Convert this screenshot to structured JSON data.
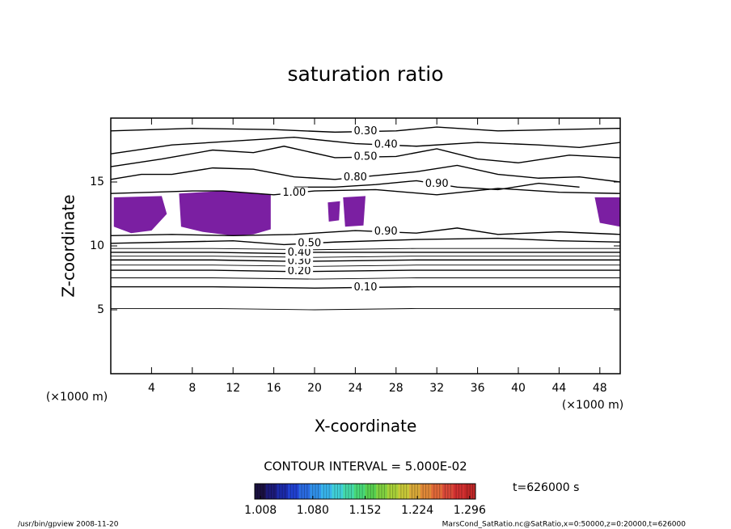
{
  "chart_data": {
    "type": "contour",
    "title": "saturation ratio",
    "x_label": "X-coordinate",
    "y_label": "Z-coordinate",
    "x_unit": "(×1000 m)",
    "y_unit": "(×1000 m)",
    "xlim": [
      0,
      50
    ],
    "ylim": [
      0,
      20
    ],
    "xticks": [
      4,
      8,
      12,
      16,
      20,
      24,
      28,
      32,
      36,
      40,
      44,
      48
    ],
    "yticks": [
      5,
      10,
      15
    ],
    "line_color": "#000000",
    "contours": [
      {
        "level": 0.05,
        "x": [
          0,
          10,
          20,
          30,
          40,
          50
        ],
        "z": [
          5.1,
          5.1,
          5.0,
          5.1,
          5.1,
          5.1
        ]
      },
      {
        "level": 0.1,
        "label": "0.10",
        "x": [
          0,
          10,
          20,
          30,
          40,
          50
        ],
        "z": [
          6.8,
          6.8,
          6.7,
          6.8,
          6.8,
          6.8
        ]
      },
      {
        "level": 0.15,
        "x": [
          0,
          10,
          20,
          30,
          40,
          50
        ],
        "z": [
          7.5,
          7.5,
          7.4,
          7.5,
          7.5,
          7.5
        ]
      },
      {
        "level": 0.2,
        "label": "0.20",
        "x": [
          0,
          10,
          17,
          20,
          30,
          40,
          50
        ],
        "z": [
          8.1,
          8.1,
          8.0,
          8.0,
          8.1,
          8.1,
          8.1
        ]
      },
      {
        "level": 0.25,
        "x": [
          0,
          10,
          20,
          30,
          40,
          50
        ],
        "z": [
          8.5,
          8.5,
          8.4,
          8.5,
          8.5,
          8.5
        ]
      },
      {
        "level": 0.3,
        "label": "0.30",
        "x": [
          0,
          10,
          17,
          20,
          30,
          40,
          50
        ],
        "z": [
          8.9,
          8.9,
          8.8,
          8.8,
          8.9,
          8.9,
          8.9
        ]
      },
      {
        "level": 0.35,
        "x": [
          0,
          10,
          20,
          30,
          40,
          50
        ],
        "z": [
          9.2,
          9.2,
          9.1,
          9.2,
          9.2,
          9.2
        ]
      },
      {
        "level": 0.4,
        "label": "0.40",
        "x": [
          0,
          10,
          17,
          20,
          30,
          40,
          50
        ],
        "z": [
          9.5,
          9.5,
          9.4,
          9.5,
          9.5,
          9.5,
          9.5
        ]
      },
      {
        "level": 0.45,
        "x": [
          0,
          10,
          20,
          30,
          40,
          50
        ],
        "z": [
          9.8,
          9.8,
          9.7,
          9.8,
          9.8,
          9.8
        ]
      },
      {
        "level": 0.5,
        "label": "0.50",
        "x": [
          0,
          6,
          12,
          17,
          22,
          30,
          38,
          44,
          50
        ],
        "z": [
          10.2,
          10.3,
          10.4,
          10.1,
          10.3,
          10.5,
          10.6,
          10.4,
          10.3
        ]
      },
      {
        "level": 0.9,
        "label": "0.90",
        "x": [
          0,
          6,
          12,
          18,
          24,
          30,
          34,
          38,
          44,
          50
        ],
        "z": [
          10.8,
          10.9,
          10.8,
          10.9,
          11.2,
          11.0,
          11.4,
          10.9,
          11.1,
          10.9
        ]
      },
      {
        "level": 1.0,
        "label": "1.00",
        "x": [
          0,
          4,
          8,
          11,
          16,
          20,
          26,
          32,
          38,
          44,
          50
        ],
        "z": [
          14.1,
          14.2,
          14.3,
          14.3,
          14.0,
          14.3,
          14.4,
          14.0,
          14.5,
          14.2,
          14.1
        ]
      },
      {
        "level": 0.9,
        "label": "0.90",
        "x": [
          18,
          22,
          26,
          30,
          34,
          38,
          42,
          46
        ],
        "z": [
          14.6,
          14.6,
          14.8,
          15.1,
          14.6,
          14.4,
          14.9,
          14.6
        ]
      },
      {
        "level": 0.8,
        "label": "0.80",
        "x": [
          0,
          3,
          6,
          10,
          14,
          18,
          22,
          26,
          30,
          34,
          38,
          42,
          46,
          50
        ],
        "z": [
          15.2,
          15.6,
          15.6,
          16.1,
          16.0,
          15.4,
          15.2,
          15.5,
          15.8,
          16.3,
          15.6,
          15.3,
          15.4,
          15.0
        ]
      },
      {
        "level": 0.5,
        "label": "0.50",
        "x": [
          0,
          5,
          10,
          14,
          17,
          22,
          28,
          32,
          36,
          40,
          45,
          50
        ],
        "z": [
          16.2,
          16.8,
          17.5,
          17.3,
          17.8,
          16.9,
          17.0,
          17.6,
          16.8,
          16.5,
          17.1,
          16.9
        ]
      },
      {
        "level": 0.4,
        "label": "0.40",
        "x": [
          0,
          6,
          12,
          18,
          24,
          30,
          36,
          42,
          46,
          50
        ],
        "z": [
          17.2,
          17.9,
          18.2,
          18.5,
          18.0,
          17.8,
          18.1,
          17.9,
          17.7,
          18.1
        ]
      },
      {
        "level": 0.3,
        "label": "0.30",
        "x": [
          0,
          8,
          16,
          22,
          28,
          32,
          38,
          44,
          50
        ],
        "z": [
          19.0,
          19.2,
          19.1,
          18.9,
          19.0,
          19.3,
          19.0,
          19.1,
          19.2
        ]
      }
    ],
    "shade_color": "#7b1fa2",
    "shaded": [
      {
        "x": [
          0.3,
          5.0,
          5.5,
          4.0,
          2.0,
          0.3
        ],
        "z": [
          13.8,
          13.9,
          12.5,
          11.2,
          11.0,
          11.5
        ]
      },
      {
        "x": [
          6.7,
          11.0,
          15.7,
          15.7,
          14.0,
          12.0,
          9.0,
          6.9
        ],
        "z": [
          14.1,
          14.3,
          14.0,
          11.3,
          10.9,
          10.8,
          11.1,
          11.5
        ]
      },
      {
        "x": [
          21.3,
          22.5,
          22.4,
          21.4
        ],
        "z": [
          13.4,
          13.5,
          12.0,
          11.9
        ]
      },
      {
        "x": [
          22.8,
          25.0,
          24.8,
          23.0
        ],
        "z": [
          13.8,
          13.9,
          11.6,
          11.5
        ]
      },
      {
        "x": [
          47.5,
          50.0,
          50.0,
          48.0
        ],
        "z": [
          13.8,
          13.8,
          11.5,
          11.8
        ]
      }
    ],
    "contour_interval": "CONTOUR INTERVAL = 5.000E-02",
    "time_label": "t=626000 s",
    "colorbar": {
      "lim": [
        1.0,
        1.304
      ],
      "colors": [
        "#1a1040",
        "#1c1a78",
        "#1c2aa8",
        "#2040d0",
        "#2a6ae0",
        "#3090e8",
        "#38b4ec",
        "#40d0d8",
        "#44d8a8",
        "#48d878",
        "#58d050",
        "#80d040",
        "#a8d038",
        "#c8c838",
        "#d8a838",
        "#e08838",
        "#e06838",
        "#d84838",
        "#d03030",
        "#c02828"
      ],
      "ticks": [
        1.008,
        {
          "value": 1.08,
          "label": "1.080"
        },
        1.152,
        1.224,
        1.296
      ]
    },
    "footer_left": "/usr/bin/gpview   2008-11-20",
    "footer_right": "MarsCond_SatRatio.nc@SatRatio,x=0:50000,z=0:20000,t=626000"
  }
}
